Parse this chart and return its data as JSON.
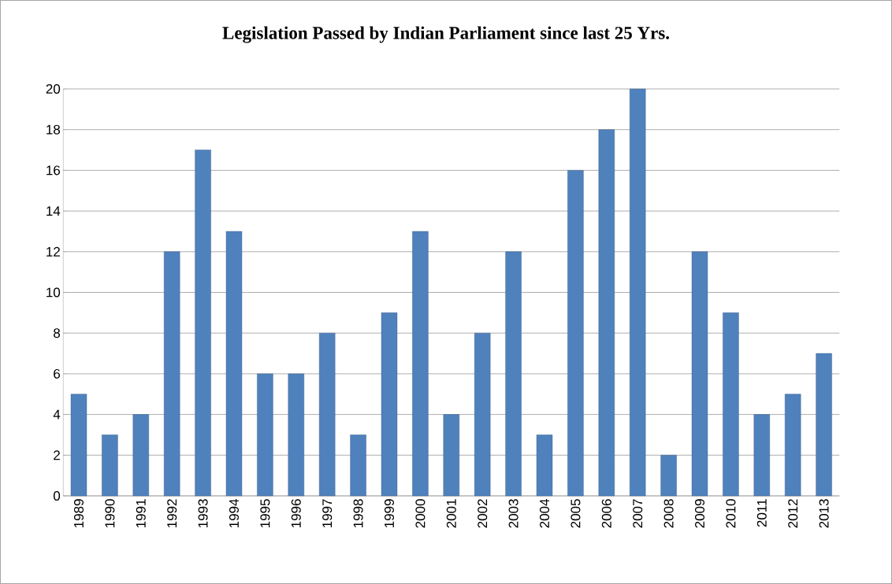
{
  "chart_data": {
    "type": "bar",
    "title": "Legislation Passed by Indian Parliament since last 25 Yrs.",
    "categories": [
      "1989",
      "1990",
      "1991",
      "1992",
      "1993",
      "1994",
      "1995",
      "1996",
      "1997",
      "1998",
      "1999",
      "2000",
      "2001",
      "2002",
      "2003",
      "2004",
      "2005",
      "2006",
      "2007",
      "2008",
      "2009",
      "2010",
      "2011",
      "2012",
      "2013"
    ],
    "values": [
      5,
      3,
      4,
      12,
      17,
      13,
      6,
      6,
      8,
      3,
      9,
      13,
      4,
      8,
      12,
      3,
      16,
      18,
      20,
      2,
      12,
      9,
      4,
      5,
      7
    ],
    "color": "#4f81bd",
    "ylim": [
      0,
      20
    ],
    "yticks": [
      0,
      2,
      4,
      6,
      8,
      10,
      12,
      14,
      16,
      18,
      20
    ],
    "grid": true
  }
}
